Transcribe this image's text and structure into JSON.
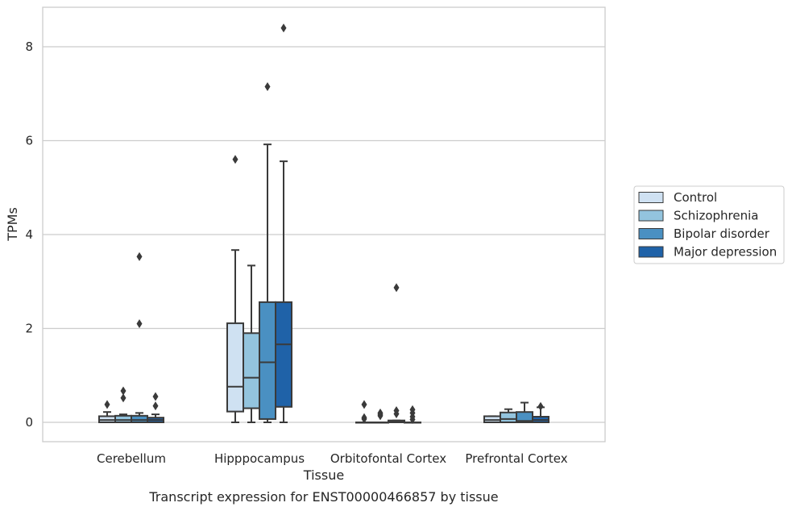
{
  "chart_data": {
    "type": "box",
    "title": "Transcript expression for ENST00000466857 by tissue",
    "xlabel": "Tissue",
    "ylabel": "TPMs",
    "ylim": [
      -0.4,
      8.8
    ],
    "yticks": [
      0,
      2,
      4,
      6,
      8
    ],
    "grid": "horizontal",
    "legend_position": "right",
    "categories": [
      "Cerebellum",
      "Hipppocampus",
      "Orbitofontal Cortex",
      "Prefrontal Cortex"
    ],
    "series": [
      {
        "name": "Control",
        "color": "#cfe1f2",
        "boxes": [
          {
            "whislo": 0,
            "q1": 0.0,
            "med": 0.05,
            "q3": 0.13,
            "whishi": 0.22,
            "fliers": [
              0.38
            ]
          },
          {
            "whislo": 0,
            "q1": 0.23,
            "med": 0.76,
            "q3": 2.11,
            "whishi": 3.67,
            "fliers": [
              5.6
            ]
          },
          {
            "whislo": 0,
            "q1": 0.0,
            "med": 0.0,
            "q3": 0.0,
            "whishi": 0.0,
            "fliers": [
              0.38,
              0.1,
              0.07
            ]
          },
          {
            "whislo": 0,
            "q1": 0.0,
            "med": 0.05,
            "q3": 0.13,
            "whishi": 0.13,
            "fliers": []
          }
        ]
      },
      {
        "name": "Schizophrenia",
        "color": "#93c4de",
        "boxes": [
          {
            "whislo": 0,
            "q1": 0.0,
            "med": 0.05,
            "q3": 0.14,
            "whishi": 0.17,
            "fliers": [
              0.67,
              0.52
            ]
          },
          {
            "whislo": 0,
            "q1": 0.3,
            "med": 0.95,
            "q3": 1.9,
            "whishi": 3.34,
            "fliers": []
          },
          {
            "whislo": 0,
            "q1": 0.0,
            "med": 0.0,
            "q3": 0.0,
            "whishi": 0.0,
            "fliers": [
              0.2,
              0.17,
              0.14
            ]
          },
          {
            "whislo": 0,
            "q1": 0.0,
            "med": 0.07,
            "q3": 0.21,
            "whishi": 0.28,
            "fliers": []
          }
        ]
      },
      {
        "name": "Bipolar disorder",
        "color": "#4a90c2",
        "boxes": [
          {
            "whislo": 0,
            "q1": 0.0,
            "med": 0.05,
            "q3": 0.14,
            "whishi": 0.2,
            "fliers": [
              3.53,
              2.1
            ]
          },
          {
            "whislo": 0,
            "q1": 0.07,
            "med": 1.28,
            "q3": 2.56,
            "whishi": 5.92,
            "fliers": [
              7.15
            ]
          },
          {
            "whislo": 0,
            "q1": 0.0,
            "med": 0.01,
            "q3": 0.04,
            "whishi": 0.04,
            "fliers": [
              2.87,
              0.25,
              0.18
            ]
          },
          {
            "whislo": 0,
            "q1": 0.0,
            "med": 0.03,
            "q3": 0.22,
            "whishi": 0.42,
            "fliers": []
          }
        ]
      },
      {
        "name": "Major depression",
        "color": "#1f62a8",
        "boxes": [
          {
            "whislo": 0,
            "q1": 0.0,
            "med": 0.05,
            "q3": 0.1,
            "whishi": 0.17,
            "fliers": [
              0.55,
              0.35
            ]
          },
          {
            "whislo": 0,
            "q1": 0.33,
            "med": 1.66,
            "q3": 2.56,
            "whishi": 5.56,
            "fliers": [
              8.4
            ]
          },
          {
            "whislo": 0,
            "q1": 0.0,
            "med": 0.0,
            "q3": 0.0,
            "whishi": 0.0,
            "fliers": [
              0.27,
              0.2,
              0.12,
              0.06
            ]
          },
          {
            "whislo": 0,
            "q1": 0.0,
            "med": 0.05,
            "q3": 0.12,
            "whishi": 0.32,
            "fliers": [
              0.34
            ]
          }
        ]
      }
    ]
  }
}
